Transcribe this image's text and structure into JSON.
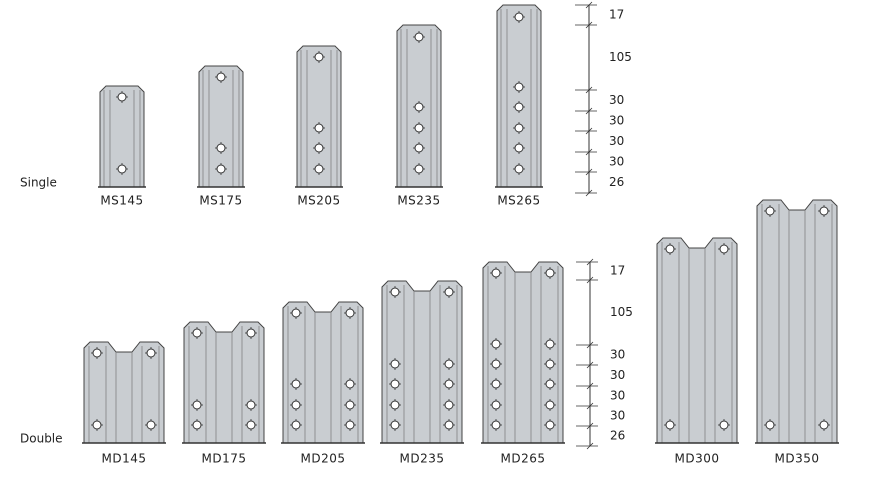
{
  "rows": [
    {
      "label": "Single",
      "items": [
        "MS145",
        "MS175",
        "MS205",
        "MS235",
        "MS265"
      ]
    },
    {
      "label": "Double",
      "items": [
        "MD145",
        "MD175",
        "MD205",
        "MD235",
        "MD265",
        "MD300",
        "MD350"
      ]
    }
  ],
  "dimensions": [
    [
      17,
      105,
      30,
      30,
      30,
      30,
      26
    ],
    [
      17,
      105,
      30,
      30,
      30,
      30,
      26
    ]
  ]
}
